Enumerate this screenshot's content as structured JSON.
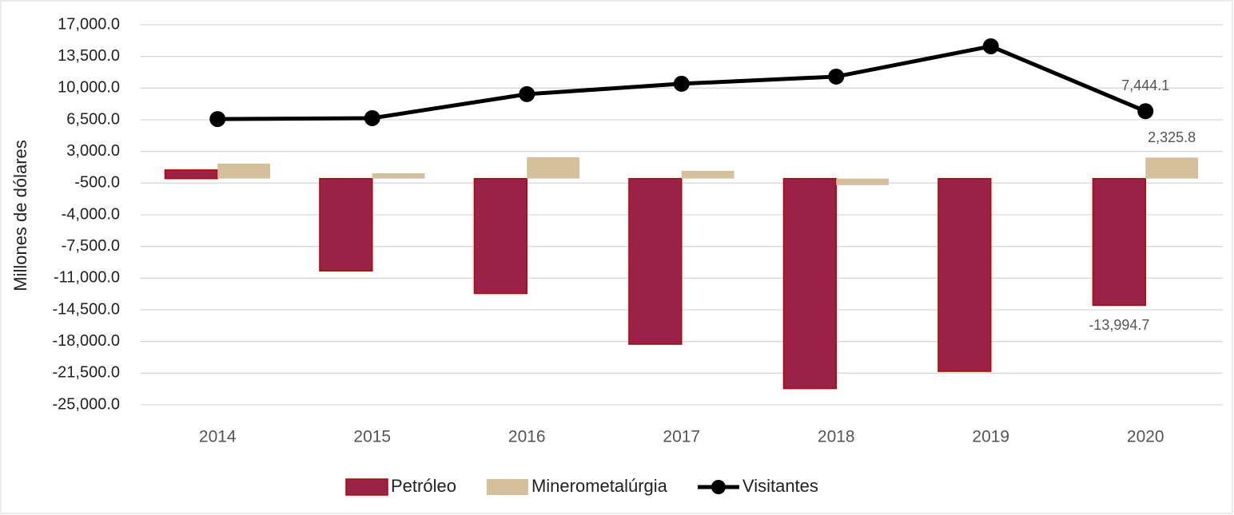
{
  "chart_data": {
    "type": "bar_line",
    "y_label": "Millones de dólares",
    "categories": [
      "2014",
      "2015",
      "2016",
      "2017",
      "2018",
      "2019",
      "2020"
    ],
    "series": [
      {
        "name": "Petróleo",
        "type": "bar",
        "color": "#9b2247",
        "edge": "#c00000",
        "values": [
          950,
          -10200,
          -12700,
          -18300,
          -23200,
          -21300,
          -13994.7
        ],
        "value_labels": [
          null,
          null,
          null,
          null,
          null,
          null,
          "-13,994.7"
        ]
      },
      {
        "name": "Minerometalúrgia",
        "type": "bar",
        "color": "#d4c19c",
        "values": [
          1650,
          590,
          2360,
          860,
          -730,
          0,
          2325.8
        ],
        "value_labels": [
          null,
          null,
          null,
          null,
          null,
          null,
          "2,325.8"
        ]
      },
      {
        "name": "Visitantes",
        "type": "line",
        "color": "#000000",
        "values": [
          6580,
          6680,
          9330,
          10480,
          11270,
          14620,
          7444.1
        ],
        "value_labels": [
          null,
          null,
          null,
          null,
          null,
          null,
          "7,444.1"
        ]
      }
    ],
    "ylim": [
      -25000,
      17000
    ],
    "yticks": [
      {
        "value": -25000,
        "label": "-25,000.0"
      },
      {
        "value": -21500,
        "label": "-21,500.0"
      },
      {
        "value": -18000,
        "label": "-18,000.0"
      },
      {
        "value": -14500,
        "label": "-14,500.0"
      },
      {
        "value": -11000,
        "label": "-11,000.0"
      },
      {
        "value": -7500,
        "label": "-7,500.0"
      },
      {
        "value": -4000,
        "label": "-4,000.0"
      },
      {
        "value": -500,
        "label": "-500.0"
      },
      {
        "value": 3000,
        "label": "3,000.0"
      },
      {
        "value": 6500,
        "label": "6,500.0"
      },
      {
        "value": 10000,
        "label": "10,000.0"
      },
      {
        "value": 13500,
        "label": "13,500.0"
      },
      {
        "value": 17000,
        "label": "17,000.0"
      }
    ],
    "grid": true,
    "legend": "bottom"
  }
}
